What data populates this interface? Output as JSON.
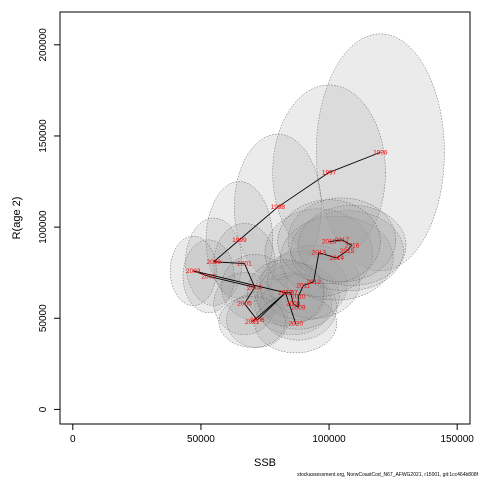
{
  "chart_data": {
    "type": "scatter",
    "xlabel": "SSB",
    "ylabel": "R(age 2)",
    "xlim": [
      -5000,
      155000
    ],
    "ylim": [
      -8000,
      218000
    ],
    "x_ticks": [
      0,
      50000,
      100000,
      150000
    ],
    "x_tick_labels": [
      "0",
      "50000",
      "100000",
      "150000"
    ],
    "y_ticks": [
      0,
      50000,
      100000,
      150000,
      200000
    ],
    "y_tick_labels": [
      "0",
      "50000",
      "100000",
      "150000",
      "200000"
    ],
    "grid": false,
    "legend": "none",
    "points": [
      {
        "label": "1996",
        "x": 120000,
        "y": 141000,
        "rx": 25000,
        "ry": 65000
      },
      {
        "label": "1997",
        "x": 100000,
        "y": 130000,
        "rx": 22000,
        "ry": 48000
      },
      {
        "label": "1998",
        "x": 80000,
        "y": 111000,
        "rx": 17000,
        "ry": 40000
      },
      {
        "label": "1999",
        "x": 65000,
        "y": 93000,
        "rx": 13000,
        "ry": 32000
      },
      {
        "label": "2000",
        "x": 55000,
        "y": 81000,
        "rx": 11000,
        "ry": 24000
      },
      {
        "label": "2001",
        "x": 67000,
        "y": 80000,
        "rx": 12000,
        "ry": 22000
      },
      {
        "label": "2002",
        "x": 53000,
        "y": 73000,
        "rx": 10000,
        "ry": 20000
      },
      {
        "label": "2003",
        "x": 47000,
        "y": 76000,
        "rx": 9000,
        "ry": 19000
      },
      {
        "label": "2004",
        "x": 71000,
        "y": 67000,
        "rx": 13000,
        "ry": 18000
      },
      {
        "label": "2005",
        "x": 67000,
        "y": 58000,
        "rx": 12000,
        "ry": 17000
      },
      {
        "label": "2006",
        "x": 72000,
        "y": 49000,
        "rx": 12000,
        "ry": 15000
      },
      {
        "label": "2007",
        "x": 85000,
        "y": 64000,
        "rx": 14000,
        "ry": 17000
      },
      {
        "label": "2008",
        "x": 86000,
        "y": 58000,
        "rx": 15000,
        "ry": 17000
      },
      {
        "label": "2009",
        "x": 88000,
        "y": 56000,
        "rx": 15000,
        "ry": 18000
      },
      {
        "label": "2010",
        "x": 88000,
        "y": 62000,
        "rx": 16000,
        "ry": 18000
      },
      {
        "label": "2011",
        "x": 90000,
        "y": 68000,
        "rx": 17000,
        "ry": 19000
      },
      {
        "label": "2012",
        "x": 94000,
        "y": 70000,
        "rx": 18000,
        "ry": 20000
      },
      {
        "label": "2013",
        "x": 96000,
        "y": 86000,
        "rx": 21000,
        "ry": 24000
      },
      {
        "label": "2014",
        "x": 103000,
        "y": 83000,
        "rx": 22000,
        "ry": 23000
      },
      {
        "label": "2015",
        "x": 107000,
        "y": 87000,
        "rx": 22000,
        "ry": 22000
      },
      {
        "label": "2016",
        "x": 109000,
        "y": 90000,
        "rx": 21000,
        "ry": 22000
      },
      {
        "label": "2017",
        "x": 105000,
        "y": 93000,
        "rx": 21000,
        "ry": 23000
      },
      {
        "label": "2018",
        "x": 100000,
        "y": 92000,
        "rx": 20000,
        "ry": 23000
      },
      {
        "label": "2019",
        "x": 83000,
        "y": 64000,
        "rx": 15000,
        "ry": 18000
      },
      {
        "label": "2020",
        "x": 87000,
        "y": 47000,
        "rx": 16000,
        "ry": 16000
      },
      {
        "label": "2021",
        "x": 70000,
        "y": 48000,
        "rx": 13000,
        "ry": 14000
      }
    ],
    "path_order": [
      "1996",
      "1997",
      "1998",
      "1999",
      "2000",
      "2001",
      "2004",
      "2005",
      "2006",
      "2019",
      "2007",
      "2008",
      "2009",
      "2010",
      "2011",
      "2012",
      "2013",
      "2014",
      "2015",
      "2016",
      "2017",
      "2018"
    ],
    "extra_segments": [
      [
        "2003",
        "2002"
      ],
      [
        "2003",
        "2019"
      ],
      [
        "2021",
        "2019"
      ],
      [
        "2019",
        "2020"
      ],
      [
        "2002",
        "2004"
      ]
    ]
  },
  "footer": "stockassessment.org, NorwCoastCod_N67_AFWG2021, r15001, git:1cc464b808f",
  "colors": {
    "ellipse_fill": "#9a9a9a",
    "ellipse_stroke": "#555555",
    "label": "#ff0000",
    "line": "#000000"
  }
}
